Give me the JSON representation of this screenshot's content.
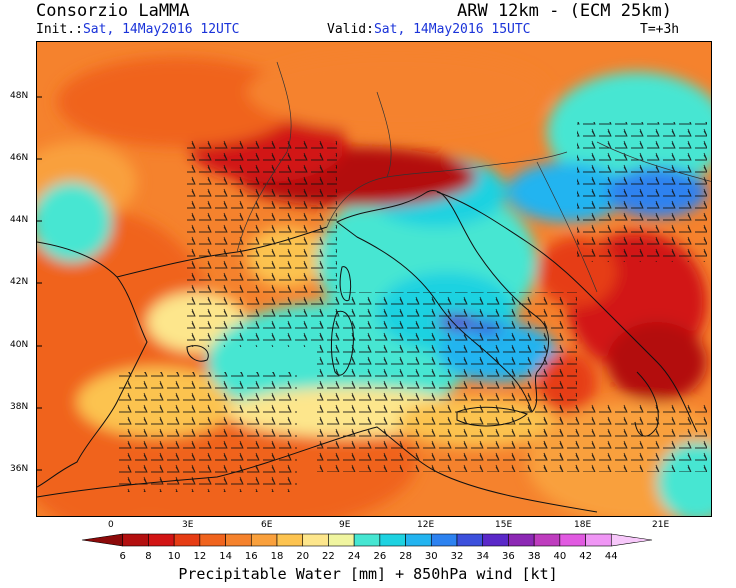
{
  "header": {
    "title": "Consorzio LaMMA",
    "model": "ARW 12km - (ECM 25km)",
    "init_label": "Init.:",
    "init_value": "Sat, 14May2016 12UTC",
    "valid_label": "Valid:",
    "valid_value": "Sat, 14May2016 15UTC",
    "step": "T=+3h"
  },
  "map": {
    "lat_labels": [
      "48N",
      "46N",
      "44N",
      "42N",
      "40N",
      "38N",
      "36N"
    ],
    "lon_labels": [
      "0",
      "3E",
      "6E",
      "9E",
      "12E",
      "15E",
      "18E",
      "21E"
    ]
  },
  "colorbar": {
    "ticks": [
      "6",
      "8",
      "10",
      "12",
      "14",
      "16",
      "18",
      "20",
      "22",
      "24",
      "26",
      "28",
      "30",
      "32",
      "34",
      "36",
      "38",
      "40",
      "42",
      "44"
    ],
    "colors": [
      "#8c0a0a",
      "#b30f0f",
      "#d21414",
      "#e63c14",
      "#f0641e",
      "#f5822d",
      "#f9a03c",
      "#fcc350",
      "#fde68c",
      "#f0f5a0",
      "#46e6d2",
      "#1ed2e1",
      "#23b4f0",
      "#2d82f0",
      "#3c50dc",
      "#5a28c8",
      "#8c28b4",
      "#be3cbe",
      "#e15ae1",
      "#f096f5",
      "#f7c8fa"
    ],
    "label": "Precipitable Water [mm] + 850hPa wind [kt]"
  }
}
